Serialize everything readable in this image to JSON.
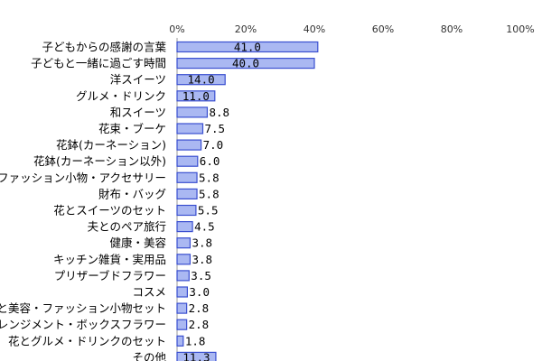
{
  "chart_data": {
    "type": "bar",
    "orientation": "horizontal",
    "xlim": [
      0,
      100
    ],
    "xticks": [
      "0%",
      "20%",
      "40%",
      "60%",
      "80%",
      "100%"
    ],
    "grid": false,
    "legend": "none",
    "categories": [
      "子どもからの感謝の言葉",
      "子どもと一緒に過ごす時間",
      "洋スイーツ",
      "グルメ・ドリンク",
      "和スイーツ",
      "花束・ブーケ",
      "花鉢(カーネーション)",
      "花鉢(カーネーション以外)",
      "ファッション小物・アクセサリー",
      "財布・バッグ",
      "花とスイーツのセット",
      "夫とのペア旅行",
      "健康・美容",
      "キッチン雑貨・実用品",
      "プリザーブドフラワー",
      "コスメ",
      "花と美容・ファッション小物セット",
      "アレンジメント・ボックスフラワー",
      "花とグルメ・ドリンクのセット",
      "その他"
    ],
    "values": [
      41.0,
      40.0,
      14.0,
      11.0,
      8.8,
      7.5,
      7.0,
      6.0,
      5.8,
      5.8,
      5.5,
      4.5,
      3.8,
      3.8,
      3.5,
      3.0,
      2.8,
      2.8,
      1.8,
      11.3
    ],
    "value_labels": [
      "41.0",
      "40.0",
      "14.0",
      "11.0",
      "8.8",
      "7.5",
      "7.0",
      "6.0",
      "5.8",
      "5.8",
      "5.5",
      "4.5",
      "3.8",
      "3.8",
      "3.5",
      "3.0",
      "2.8",
      "2.8",
      "1.8",
      "11.3"
    ],
    "bar_color": "#aab8f2",
    "bar_border": "#3a4fd0"
  }
}
